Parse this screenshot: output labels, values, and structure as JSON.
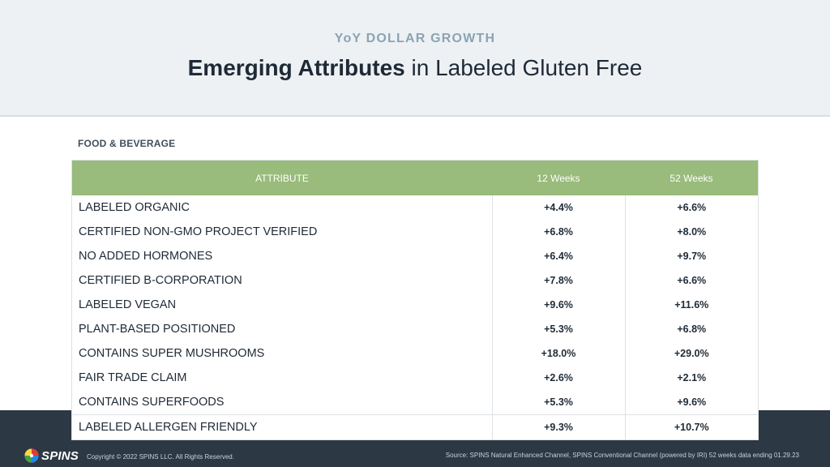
{
  "header": {
    "eyebrow": "YoY DOLLAR GROWTH",
    "title_bold": "Emerging Attributes",
    "title_rest": " in Labeled Gluten Free"
  },
  "section_label": "FOOD & BEVERAGE",
  "table": {
    "columns": [
      "ATTRIBUTE",
      "12 Weeks",
      "52 Weeks"
    ],
    "rows": [
      {
        "attribute": "LABELED ORGANIC",
        "w12": "+4.4%",
        "w52": "+6.6%"
      },
      {
        "attribute": "CERTIFIED NON-GMO PROJECT VERIFIED",
        "w12": "+6.8%",
        "w52": "+8.0%"
      },
      {
        "attribute": "NO ADDED HORMONES",
        "w12": "+6.4%",
        "w52": "+9.7%"
      },
      {
        "attribute": "CERTIFIED B-CORPORATION",
        "w12": "+7.8%",
        "w52": "+6.6%"
      },
      {
        "attribute": "LABELED VEGAN",
        "w12": "+9.6%",
        "w52": "+11.6%"
      },
      {
        "attribute": "PLANT-BASED POSITIONED",
        "w12": "+5.3%",
        "w52": "+6.8%"
      },
      {
        "attribute": "CONTAINS SUPER MUSHROOMS",
        "w12": "+18.0%",
        "w52": "+29.0%"
      },
      {
        "attribute": "FAIR TRADE CLAIM",
        "w12": "+2.6%",
        "w52": "+2.1%"
      },
      {
        "attribute": "CONTAINS SUPERFOODS",
        "w12": "+5.3%",
        "w52": "+9.6%"
      },
      {
        "attribute": "LABELED ALLERGEN FRIENDLY",
        "w12": "+9.3%",
        "w52": "+10.7%"
      }
    ]
  },
  "footer": {
    "logo_text": "SPINS",
    "copyright": "Copyright © 2022 SPINS LLC. All Rights Reserved.",
    "source": "Source: SPINS Natural Enhanced Channel, SPINS Conventional Channel (powered by IRI) 52 weeks data ending 01.29.23"
  },
  "colors": {
    "header_bg": "#edf1f4",
    "table_header_bg": "#99bb7b",
    "footer_bg": "#2c3843",
    "eyebrow": "#8aa4b2"
  }
}
